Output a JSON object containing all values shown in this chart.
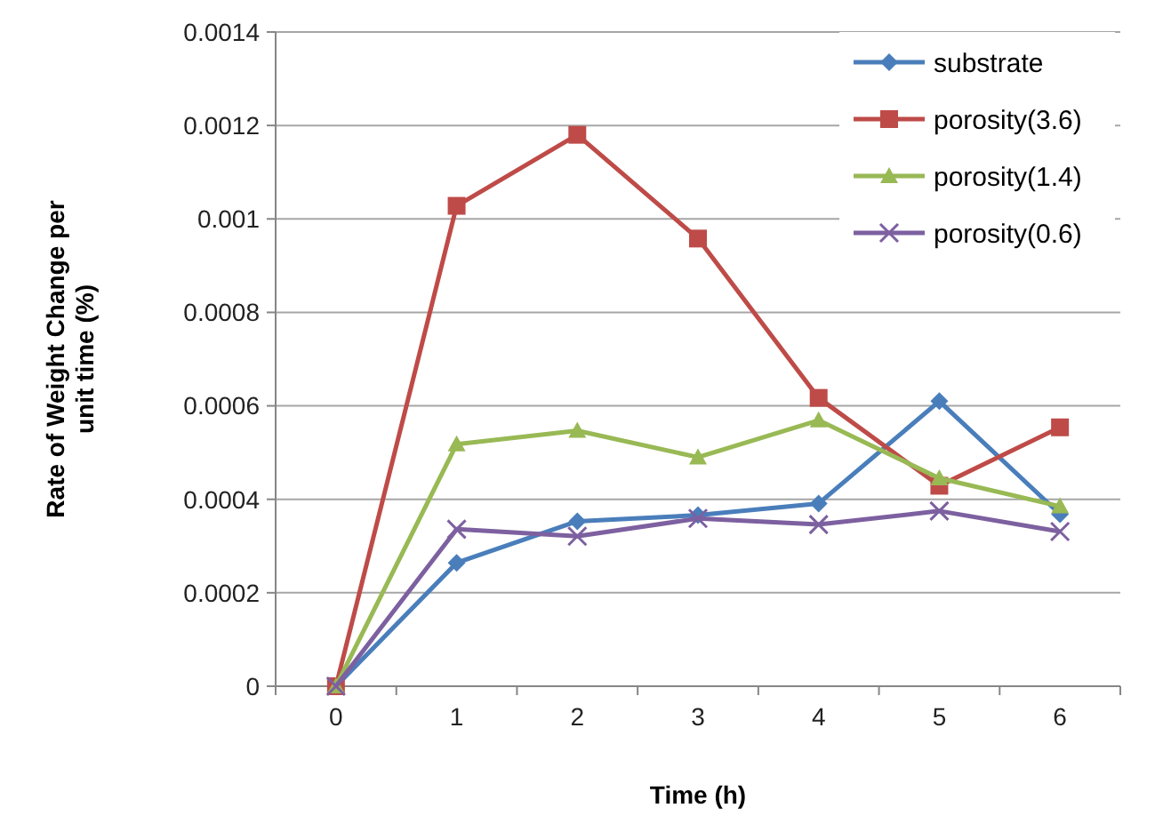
{
  "chart_data": {
    "type": "line",
    "xlabel": "Time (h)",
    "ylabel": "Rate of Weight Change per unit time (%)",
    "categories": [
      "0",
      "1",
      "2",
      "3",
      "4",
      "5",
      "6"
    ],
    "ylim": [
      0,
      0.0014
    ],
    "yticks": [
      0,
      0.0002,
      0.0004,
      0.0006,
      0.0008,
      0.001,
      0.0012,
      0.0014
    ],
    "grid": "y",
    "legend": "top right",
    "series": [
      {
        "name": "substrate",
        "color": "#4a7ebb",
        "marker": "diamond",
        "values": [
          0,
          0.000264,
          0.000353,
          0.000366,
          0.000391,
          0.00061,
          0.000368
        ]
      },
      {
        "name": "porosity(3.6)",
        "color": "#be4b48",
        "marker": "square",
        "values": [
          0,
          0.001028,
          0.00118,
          0.000958,
          0.000617,
          0.000429,
          0.000554
        ]
      },
      {
        "name": "porosity(1.4)",
        "color": "#98b954",
        "marker": "triangle",
        "values": [
          0,
          0.000518,
          0.000547,
          0.00049,
          0.000569,
          0.000445,
          0.000385
        ]
      },
      {
        "name": "porosity(0.6)",
        "color": "#7d60a0",
        "marker": "cross",
        "values": [
          0,
          0.000336,
          0.000321,
          0.000359,
          0.000346,
          0.000375,
          0.000331
        ]
      }
    ]
  }
}
